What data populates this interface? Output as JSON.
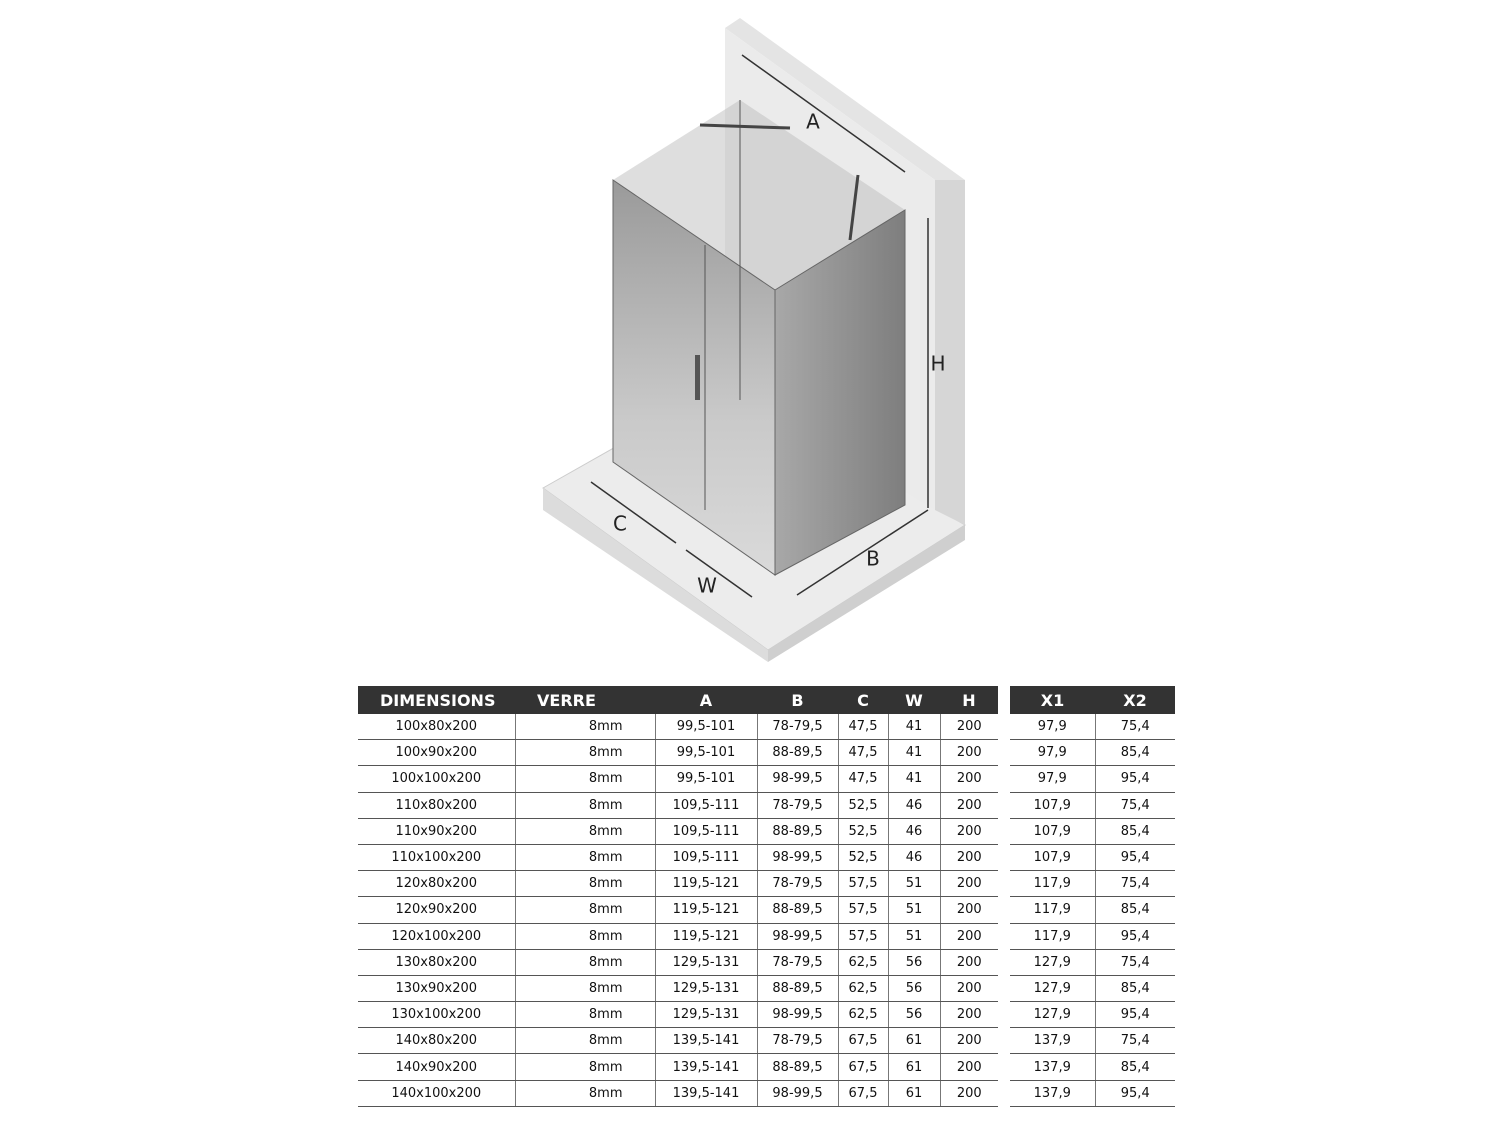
{
  "diagram": {
    "labels": {
      "a": "A",
      "b": "B",
      "c": "C",
      "w": "W",
      "h": "H"
    }
  },
  "table": {
    "headers": [
      "DIMENSIONS",
      "VERRE",
      "A",
      "B",
      "C",
      "W",
      "H"
    ],
    "rows": [
      [
        "100x80x200",
        "8mm",
        "99,5-101",
        "78-79,5",
        "47,5",
        "41",
        "200"
      ],
      [
        "100x90x200",
        "8mm",
        "99,5-101",
        "88-89,5",
        "47,5",
        "41",
        "200"
      ],
      [
        "100x100x200",
        "8mm",
        "99,5-101",
        "98-99,5",
        "47,5",
        "41",
        "200"
      ],
      [
        "110x80x200",
        "8mm",
        "109,5-111",
        "78-79,5",
        "52,5",
        "46",
        "200"
      ],
      [
        "110x90x200",
        "8mm",
        "109,5-111",
        "88-89,5",
        "52,5",
        "46",
        "200"
      ],
      [
        "110x100x200",
        "8mm",
        "109,5-111",
        "98-99,5",
        "52,5",
        "46",
        "200"
      ],
      [
        "120x80x200",
        "8mm",
        "119,5-121",
        "78-79,5",
        "57,5",
        "51",
        "200"
      ],
      [
        "120x90x200",
        "8mm",
        "119,5-121",
        "88-89,5",
        "57,5",
        "51",
        "200"
      ],
      [
        "120x100x200",
        "8mm",
        "119,5-121",
        "98-99,5",
        "57,5",
        "51",
        "200"
      ],
      [
        "130x80x200",
        "8mm",
        "129,5-131",
        "78-79,5",
        "62,5",
        "56",
        "200"
      ],
      [
        "130x90x200",
        "8mm",
        "129,5-131",
        "88-89,5",
        "62,5",
        "56",
        "200"
      ],
      [
        "130x100x200",
        "8mm",
        "129,5-131",
        "98-99,5",
        "62,5",
        "56",
        "200"
      ],
      [
        "140x80x200",
        "8mm",
        "139,5-141",
        "78-79,5",
        "67,5",
        "61",
        "200"
      ],
      [
        "140x90x200",
        "8mm",
        "139,5-141",
        "88-89,5",
        "67,5",
        "61",
        "200"
      ],
      [
        "140x100x200",
        "8mm",
        "139,5-141",
        "98-99,5",
        "67,5",
        "61",
        "200"
      ]
    ]
  },
  "table2": {
    "headers": [
      "X1",
      "X2"
    ],
    "rows": [
      [
        "97,9",
        "75,4"
      ],
      [
        "97,9",
        "85,4"
      ],
      [
        "97,9",
        "95,4"
      ],
      [
        "107,9",
        "75,4"
      ],
      [
        "107,9",
        "85,4"
      ],
      [
        "107,9",
        "95,4"
      ],
      [
        "117,9",
        "75,4"
      ],
      [
        "117,9",
        "85,4"
      ],
      [
        "117,9",
        "95,4"
      ],
      [
        "127,9",
        "75,4"
      ],
      [
        "127,9",
        "85,4"
      ],
      [
        "127,9",
        "95,4"
      ],
      [
        "137,9",
        "75,4"
      ],
      [
        "137,9",
        "85,4"
      ],
      [
        "137,9",
        "95,4"
      ]
    ]
  }
}
